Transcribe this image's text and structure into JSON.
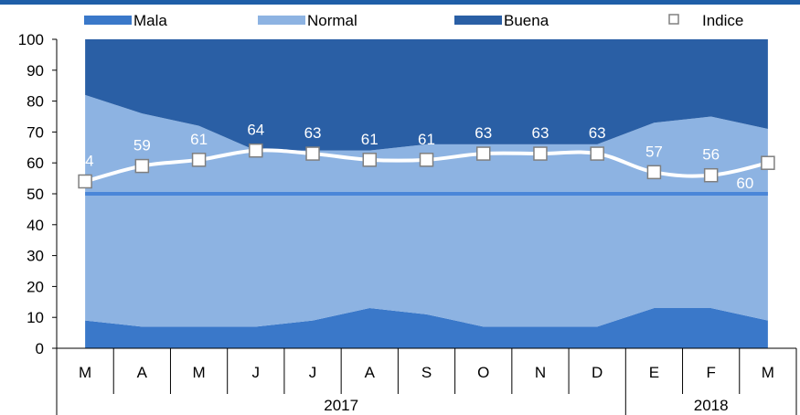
{
  "chart_data": {
    "type": "area",
    "stacked": true,
    "categories": [
      "M",
      "A",
      "M",
      "J",
      "J",
      "A",
      "S",
      "O",
      "N",
      "D",
      "E",
      "F",
      "M"
    ],
    "years": [
      {
        "label": "2017",
        "span": 10
      },
      {
        "label": "2018",
        "span": 3
      }
    ],
    "series": [
      {
        "name": "Mala",
        "color": "#3a78c9",
        "values": [
          9,
          7,
          7,
          7,
          9,
          13,
          11,
          7,
          7,
          7,
          13,
          13,
          9
        ]
      },
      {
        "name": "Normal",
        "color": "#8db3e2",
        "values": [
          73,
          69,
          65,
          57,
          55,
          51,
          55,
          59,
          59,
          59,
          60,
          62,
          62
        ]
      },
      {
        "name": "Buena",
        "color": "#2a5fa5",
        "values": [
          18,
          24,
          28,
          36,
          36,
          36,
          34,
          34,
          34,
          34,
          27,
          25,
          29
        ]
      }
    ],
    "index_series": {
      "name": "Indice",
      "values": [
        54,
        59,
        61,
        64,
        63,
        61,
        61,
        63,
        63,
        63,
        57,
        56,
        60
      ],
      "line_color": "#ffffff",
      "label_color": "#ffffff"
    },
    "reference_line": {
      "value": 50,
      "color": "#4a86d8"
    },
    "ylim": [
      0,
      100
    ],
    "yticks": [
      0,
      10,
      20,
      30,
      40,
      50,
      60,
      70,
      80,
      90,
      100
    ],
    "legend_position": "top",
    "grid": false,
    "title": "",
    "xlabel": "",
    "ylabel": ""
  },
  "top_bar_color": "#1f5fa8"
}
